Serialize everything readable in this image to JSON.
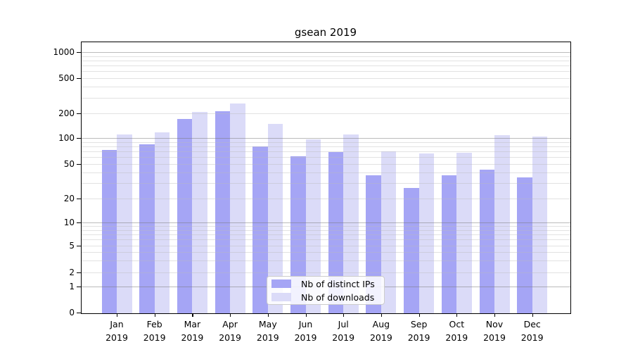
{
  "chart_data": {
    "type": "bar",
    "title": "gsean 2019",
    "categories": [
      "Jan 2019",
      "Feb 2019",
      "Mar 2019",
      "Apr 2019",
      "May 2019",
      "Jun 2019",
      "Jul 2019",
      "Aug 2019",
      "Sep 2019",
      "Oct 2019",
      "Nov 2019",
      "Dec 2019"
    ],
    "series": [
      {
        "name": "Nb of distinct IPs",
        "color": "#a5a5f5",
        "values": [
          74,
          86,
          174,
          215,
          81,
          63,
          70,
          38,
          27,
          38,
          44,
          36
        ]
      },
      {
        "name": "Nb of downloads",
        "color": "#dbdbf8",
        "values": [
          113,
          120,
          210,
          265,
          152,
          98,
          112,
          71,
          67,
          69,
          110,
          106
        ]
      }
    ],
    "yscale": "symlog",
    "yticks": [
      0,
      1,
      2,
      5,
      10,
      20,
      50,
      100,
      200,
      500,
      1000
    ],
    "ylim": [
      0,
      1300
    ],
    "grid": true,
    "legend_position": "lower center"
  },
  "colors": {
    "background": "#ffffff",
    "axis": "#000000",
    "major_gridline": "rgba(120,120,120,0.5)",
    "minor_gridline": "rgba(185,185,185,0.42)"
  }
}
